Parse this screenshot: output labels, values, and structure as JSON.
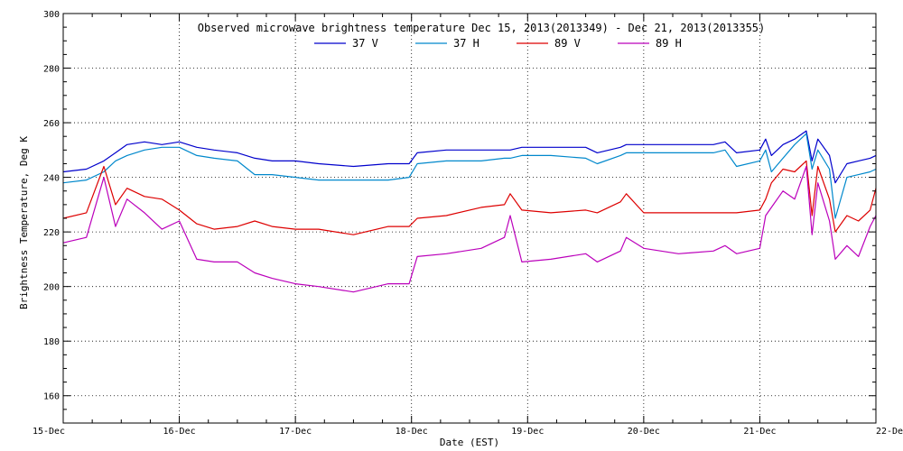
{
  "chart_data": {
    "type": "line",
    "title": "Observed microwave brightness temperature Dec 15, 2013(2013349) - Dec 21, 2013(2013355)",
    "xlabel": "Date (EST)",
    "ylabel": "Brightness Temperature, Deg K",
    "xlim": [
      0,
      7
    ],
    "ylim": [
      150,
      300
    ],
    "x_ticks": [
      {
        "label": "15-Dec",
        "day": 0
      },
      {
        "label": "16-Dec",
        "day": 1
      },
      {
        "label": "17-Dec",
        "day": 2
      },
      {
        "label": "18-Dec",
        "day": 3
      },
      {
        "label": "19-Dec",
        "day": 4
      },
      {
        "label": "20-Dec",
        "day": 5
      },
      {
        "label": "21-Dec",
        "day": 6
      },
      {
        "label": "22-Dec",
        "day": 7
      }
    ],
    "y_ticks": [
      160,
      180,
      200,
      220,
      240,
      260,
      280,
      300
    ],
    "grid": true,
    "legend_position": "top-center",
    "x": [
      0,
      0.2,
      0.35,
      0.45,
      0.55,
      0.7,
      0.85,
      1.0,
      1.15,
      1.3,
      1.5,
      1.65,
      1.8,
      2.0,
      2.2,
      2.5,
      2.8,
      2.98,
      3.05,
      3.3,
      3.6,
      3.8,
      3.85,
      3.95,
      4.2,
      4.5,
      4.6,
      4.8,
      4.85,
      5.0,
      5.3,
      5.6,
      5.7,
      5.8,
      6.0,
      6.05,
      6.1,
      6.2,
      6.3,
      6.4,
      6.45,
      6.5,
      6.6,
      6.65,
      6.75,
      6.85,
      6.95,
      7.0
    ],
    "series": [
      {
        "name": "37 V",
        "color": "#0000cc",
        "values": [
          242,
          243,
          246,
          249,
          252,
          253,
          252,
          253,
          251,
          250,
          249,
          247,
          246,
          246,
          245,
          244,
          245,
          245,
          249,
          250,
          250,
          250,
          250,
          251,
          251,
          251,
          249,
          251,
          252,
          252,
          252,
          252,
          253,
          249,
          250,
          254,
          248,
          252,
          254,
          257,
          246,
          254,
          248,
          238,
          245,
          246,
          247,
          248
        ]
      },
      {
        "name": "37 H",
        "color": "#0088cc",
        "values": [
          238,
          239,
          242,
          246,
          248,
          250,
          251,
          251,
          248,
          247,
          246,
          241,
          241,
          240,
          239,
          239,
          239,
          240,
          245,
          246,
          246,
          247,
          247,
          248,
          248,
          247,
          245,
          248,
          249,
          249,
          249,
          249,
          250,
          244,
          246,
          250,
          242,
          247,
          252,
          256,
          243,
          250,
          243,
          225,
          240,
          241,
          242,
          243
        ]
      },
      {
        "name": "89 V",
        "color": "#dd0000",
        "values": [
          225,
          227,
          244,
          230,
          236,
          233,
          232,
          228,
          223,
          221,
          222,
          224,
          222,
          221,
          221,
          219,
          222,
          222,
          225,
          226,
          229,
          230,
          234,
          228,
          227,
          228,
          227,
          231,
          234,
          227,
          227,
          227,
          227,
          227,
          228,
          232,
          238,
          243,
          242,
          246,
          226,
          244,
          232,
          220,
          226,
          224,
          228,
          236
        ]
      },
      {
        "name": "89 H",
        "color": "#bb00bb",
        "values": [
          216,
          218,
          240,
          222,
          232,
          227,
          221,
          224,
          210,
          209,
          209,
          205,
          203,
          201,
          200,
          198,
          201,
          201,
          211,
          212,
          214,
          218,
          226,
          209,
          210,
          212,
          209,
          213,
          218,
          214,
          212,
          213,
          215,
          212,
          214,
          226,
          229,
          235,
          232,
          244,
          219,
          238,
          224,
          210,
          215,
          211,
          222,
          226
        ]
      }
    ]
  }
}
